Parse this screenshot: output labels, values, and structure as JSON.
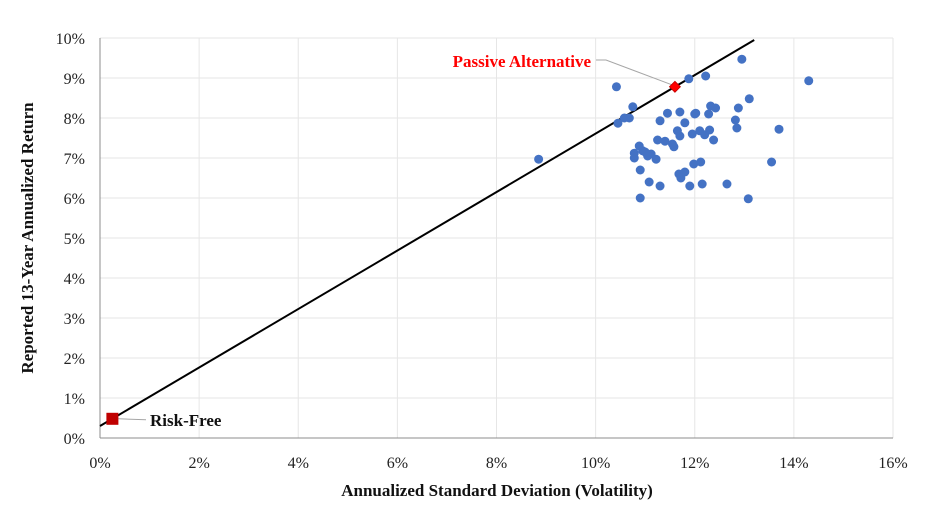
{
  "chart_data": {
    "type": "scatter",
    "xlabel": "Annualized Standard Deviation (Volatility)",
    "ylabel": "Reported 13-Year Annualized Return",
    "xlim": [
      0,
      0.16
    ],
    "ylim": [
      0,
      0.1
    ],
    "x_ticks": [
      "0%",
      "2%",
      "4%",
      "6%",
      "8%",
      "10%",
      "12%",
      "14%",
      "16%"
    ],
    "y_ticks": [
      "0%",
      "1%",
      "2%",
      "3%",
      "4%",
      "5%",
      "6%",
      "7%",
      "8%",
      "9%",
      "10%"
    ],
    "grid": true,
    "colors": {
      "funds": "#4472c4",
      "passive": "#ff0000",
      "risk_free": "#c00000",
      "line": "#000000",
      "grid": "#e6e6e6",
      "annot_passive": "#ff0000",
      "annot_riskfree": "#111111"
    },
    "capital_market_line": {
      "start": [
        0.0,
        0.003
      ],
      "end": [
        0.132,
        0.0995
      ]
    },
    "series": [
      {
        "points": [
          [
            0.0885,
            0.0697
          ],
          [
            0.1042,
            0.0878
          ],
          [
            0.1045,
            0.0787
          ],
          [
            0.1058,
            0.08
          ],
          [
            0.1068,
            0.08
          ],
          [
            0.1075,
            0.0828
          ],
          [
            0.1078,
            0.0712
          ],
          [
            0.1078,
            0.07
          ],
          [
            0.1088,
            0.073
          ],
          [
            0.109,
            0.067
          ],
          [
            0.109,
            0.06
          ],
          [
            0.1095,
            0.0718
          ],
          [
            0.11,
            0.0715
          ],
          [
            0.1105,
            0.0705
          ],
          [
            0.1108,
            0.064
          ],
          [
            0.1112,
            0.071
          ],
          [
            0.1122,
            0.0697
          ],
          [
            0.1125,
            0.0745
          ],
          [
            0.113,
            0.063
          ],
          [
            0.113,
            0.0793
          ],
          [
            0.114,
            0.0742
          ],
          [
            0.1145,
            0.0812
          ],
          [
            0.1155,
            0.0735
          ],
          [
            0.1158,
            0.0728
          ],
          [
            0.1165,
            0.0768
          ],
          [
            0.1168,
            0.066
          ],
          [
            0.117,
            0.0755
          ],
          [
            0.117,
            0.0815
          ],
          [
            0.1172,
            0.065
          ],
          [
            0.118,
            0.0665
          ],
          [
            0.118,
            0.0788
          ],
          [
            0.1188,
            0.0898
          ],
          [
            0.119,
            0.063
          ],
          [
            0.1195,
            0.076
          ],
          [
            0.1198,
            0.0685
          ],
          [
            0.12,
            0.081
          ],
          [
            0.1202,
            0.0812
          ],
          [
            0.121,
            0.0768
          ],
          [
            0.1212,
            0.069
          ],
          [
            0.1215,
            0.0635
          ],
          [
            0.122,
            0.0758
          ],
          [
            0.1222,
            0.0905
          ],
          [
            0.1228,
            0.081
          ],
          [
            0.123,
            0.077
          ],
          [
            0.1232,
            0.083
          ],
          [
            0.1238,
            0.0745
          ],
          [
            0.1242,
            0.0825
          ],
          [
            0.1265,
            0.0635
          ],
          [
            0.1282,
            0.0795
          ],
          [
            0.1285,
            0.0775
          ],
          [
            0.1288,
            0.0825
          ],
          [
            0.1295,
            0.0947
          ],
          [
            0.1308,
            0.0598
          ],
          [
            0.131,
            0.0848
          ],
          [
            0.1355,
            0.069
          ],
          [
            0.137,
            0.0772
          ],
          [
            0.143,
            0.0893
          ]
        ]
      }
    ],
    "highlights": [
      {
        "label": "Passive Alternative",
        "x": 0.116,
        "y": 0.0878,
        "marker": "diamond"
      },
      {
        "label": "Risk-Free",
        "x": 0.0025,
        "y": 0.0048,
        "marker": "square"
      }
    ]
  }
}
